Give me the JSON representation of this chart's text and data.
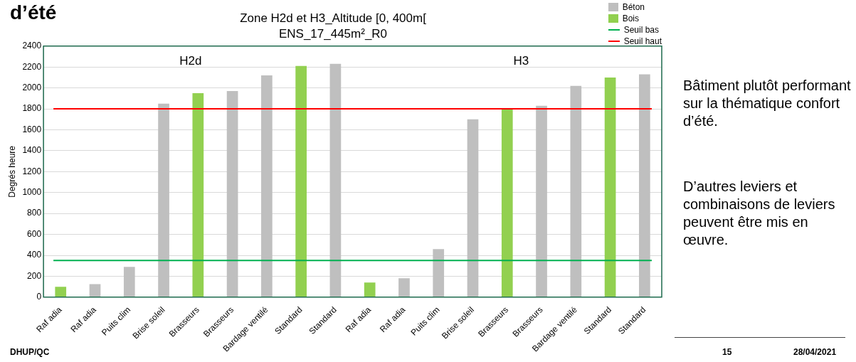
{
  "chart_data": {
    "type": "bar",
    "title": "Zone H2d et H3_Altitude [0, 400m[",
    "subtitle": "ENS_17_445m²_R0",
    "ylabel": "Degrés heure",
    "categories": [
      "Raf adia",
      "Raf adia",
      "Puits clim",
      "Brise soleil",
      "Brasseurs",
      "Brasseurs",
      "Bardage ventilé",
      "Standard",
      "Standard",
      "Raf adia",
      "Raf adia",
      "Puits clim",
      "Brise soleil",
      "Brasseurs",
      "Brasseurs",
      "Bardage ventilé",
      "Standard",
      "Standard"
    ],
    "series": [
      {
        "name": "Béton",
        "color": "#bfbfbf",
        "values": [
          null,
          125,
          290,
          1850,
          null,
          1970,
          2120,
          null,
          2230,
          null,
          180,
          460,
          1700,
          null,
          1830,
          2020,
          null,
          2130
        ]
      },
      {
        "name": "Bois",
        "color": "#92d050",
        "values": [
          100,
          null,
          null,
          null,
          1950,
          null,
          null,
          2210,
          null,
          140,
          null,
          null,
          null,
          1800,
          null,
          null,
          2100,
          null
        ]
      }
    ],
    "ylim": [
      0,
      2400
    ],
    "yticks": [
      0,
      200,
      400,
      600,
      800,
      1000,
      1200,
      1400,
      1600,
      1800,
      2000,
      2200,
      2400
    ],
    "grid": "y",
    "legend": "top right",
    "ref_lines": [
      {
        "axis": "y",
        "value": 350,
        "label": "Seuil bas",
        "color": "#00b050"
      },
      {
        "axis": "y",
        "value": 1800,
        "label": "Seuil haut",
        "color": "#ff0000"
      }
    ],
    "annotations": [
      "d’été",
      "H2d",
      "H3",
      "Bâtiment plutôt performant sur la thématique confort d’été.",
      "D’autres leviers et combinaisons de leviers peuvent être mis en œuvre.",
      "DHUP/QC",
      "15",
      "28/04/2021"
    ]
  }
}
